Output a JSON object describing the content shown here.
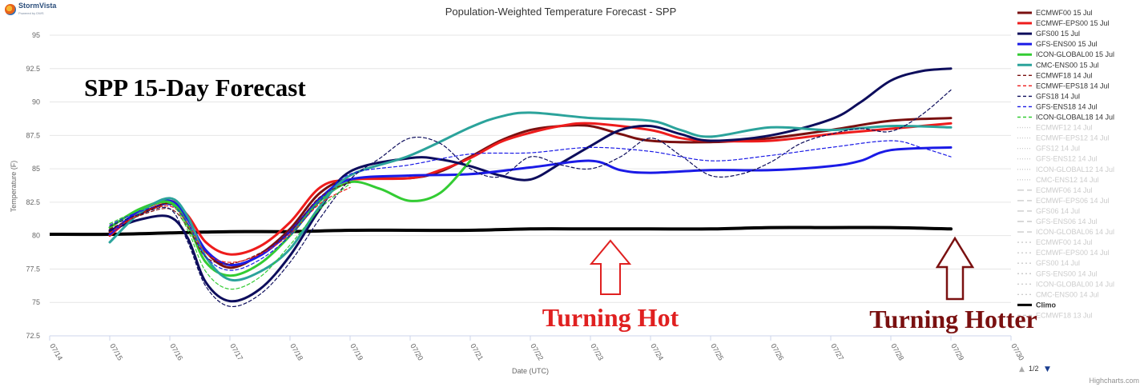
{
  "branding": {
    "logo_text": "StormVista",
    "logo_sub": "Powered by DWS",
    "credits": "Highcharts.com"
  },
  "legend_paging": {
    "up_icon": "▲",
    "text": "1/2",
    "down_icon": "▼"
  },
  "overlays": {
    "big_title": "SPP 15-Day Forecast",
    "hot_label": "Turning Hot",
    "hotter_label": "Turning Hotter",
    "hot_color": "#e02020",
    "hotter_color": "#7a1010"
  },
  "chart_data": {
    "type": "line",
    "title": "Population-Weighted Temperature Forecast - SPP",
    "xlabel": "Date (UTC)",
    "ylabel": "Temperature (F)",
    "x_ticks": [
      "07/14",
      "07/15",
      "07/16",
      "07/17",
      "07/18",
      "07/19",
      "07/20",
      "07/21",
      "07/22",
      "07/23",
      "07/24",
      "07/25",
      "07/26",
      "07/27",
      "07/28",
      "07/29",
      "07/30"
    ],
    "xlim": [
      0,
      16
    ],
    "ylim": [
      72.5,
      95
    ],
    "y_ticks": [
      72.5,
      75,
      77.5,
      80,
      82.5,
      85,
      87.5,
      90,
      92.5,
      95
    ],
    "legend_position": "right",
    "series": [
      {
        "name": "ECMWF00 15 Jul",
        "color": "#7a1010",
        "dash": "solid",
        "width": 3,
        "points": [
          [
            1,
            80.3
          ],
          [
            1.5,
            81.6
          ],
          [
            2,
            82.4
          ],
          [
            2.3,
            81.2
          ],
          [
            2.6,
            78.8
          ],
          [
            3,
            77.6
          ],
          [
            3.5,
            78.6
          ],
          [
            4,
            80.5
          ],
          [
            4.5,
            83.2
          ],
          [
            5,
            84.2
          ],
          [
            6,
            84.3
          ],
          [
            6.5,
            84.8
          ],
          [
            7,
            85.9
          ],
          [
            7.5,
            87.1
          ],
          [
            8,
            87.9
          ],
          [
            8.5,
            88.2
          ],
          [
            9,
            88.2
          ],
          [
            9.5,
            87.6
          ],
          [
            10,
            87.1
          ],
          [
            11,
            87.0
          ],
          [
            12,
            87.3
          ],
          [
            13,
            87.9
          ],
          [
            14,
            88.6
          ],
          [
            15,
            88.8
          ]
        ]
      },
      {
        "name": "ECMWF-EPS00 15 Jul",
        "color": "#ee1c1c",
        "dash": "solid",
        "width": 3,
        "points": [
          [
            1,
            80.0
          ],
          [
            1.5,
            81.8
          ],
          [
            2,
            82.6
          ],
          [
            2.3,
            81.5
          ],
          [
            2.6,
            79.5
          ],
          [
            3,
            78.6
          ],
          [
            3.5,
            79.2
          ],
          [
            4,
            81.0
          ],
          [
            4.5,
            83.6
          ],
          [
            5,
            84.2
          ],
          [
            6,
            84.3
          ],
          [
            6.5,
            84.9
          ],
          [
            7,
            85.8
          ],
          [
            7.5,
            87.0
          ],
          [
            8,
            87.7
          ],
          [
            8.5,
            88.2
          ],
          [
            9,
            88.4
          ],
          [
            10,
            87.9
          ],
          [
            10.5,
            87.3
          ],
          [
            11,
            87.1
          ],
          [
            12,
            87.1
          ],
          [
            13,
            87.6
          ],
          [
            14,
            88.0
          ],
          [
            15,
            88.4
          ]
        ]
      },
      {
        "name": "GFS00 15 Jul",
        "color": "#0d0d5c",
        "dash": "solid",
        "width": 3,
        "points": [
          [
            1,
            80.4
          ],
          [
            1.5,
            81.2
          ],
          [
            2,
            81.4
          ],
          [
            2.3,
            79.8
          ],
          [
            2.6,
            76.5
          ],
          [
            3,
            75.1
          ],
          [
            3.5,
            76.0
          ],
          [
            4,
            78.5
          ],
          [
            4.5,
            82.0
          ],
          [
            5,
            84.8
          ],
          [
            6,
            85.8
          ],
          [
            6.5,
            85.7
          ],
          [
            7,
            85.2
          ],
          [
            7.5,
            84.5
          ],
          [
            8,
            84.2
          ],
          [
            8.5,
            85.4
          ],
          [
            9,
            86.7
          ],
          [
            9.5,
            87.9
          ],
          [
            10,
            88.2
          ],
          [
            10.5,
            87.6
          ],
          [
            11,
            87.1
          ],
          [
            12,
            87.5
          ],
          [
            13,
            88.7
          ],
          [
            13.5,
            90.0
          ],
          [
            14,
            91.6
          ],
          [
            14.5,
            92.3
          ],
          [
            15,
            92.5
          ]
        ]
      },
      {
        "name": "GFS-ENS00 15 Jul",
        "color": "#1a1ae6",
        "dash": "solid",
        "width": 3,
        "points": [
          [
            1,
            80.1
          ],
          [
            1.5,
            81.9
          ],
          [
            2,
            82.6
          ],
          [
            2.3,
            81.2
          ],
          [
            2.6,
            78.9
          ],
          [
            3,
            77.8
          ],
          [
            3.5,
            78.5
          ],
          [
            4,
            80.3
          ],
          [
            4.5,
            82.8
          ],
          [
            5,
            84.2
          ],
          [
            6,
            84.5
          ],
          [
            7,
            84.6
          ],
          [
            8,
            85.1
          ],
          [
            9,
            85.6
          ],
          [
            9.5,
            84.9
          ],
          [
            10,
            84.7
          ],
          [
            11,
            84.9
          ],
          [
            12,
            84.9
          ],
          [
            13,
            85.2
          ],
          [
            13.5,
            85.6
          ],
          [
            14,
            86.4
          ],
          [
            15,
            86.6
          ]
        ]
      },
      {
        "name": "ICON-GLOBAL00 15 Jul",
        "color": "#33cc33",
        "dash": "solid",
        "width": 3,
        "points": [
          [
            1,
            80.6
          ],
          [
            1.5,
            82.0
          ],
          [
            2,
            82.5
          ],
          [
            2.3,
            80.8
          ],
          [
            2.6,
            78.0
          ],
          [
            3,
            77.0
          ],
          [
            3.5,
            77.9
          ],
          [
            4,
            80.0
          ],
          [
            4.5,
            82.6
          ],
          [
            5,
            84.0
          ],
          [
            5.5,
            83.5
          ],
          [
            6,
            82.6
          ],
          [
            6.5,
            83.2
          ],
          [
            7,
            85.6
          ]
        ]
      },
      {
        "name": "CMC-ENS00 15 Jul",
        "color": "#2ba39b",
        "dash": "solid",
        "width": 3,
        "points": [
          [
            1,
            79.5
          ],
          [
            1.5,
            81.7
          ],
          [
            2,
            82.8
          ],
          [
            2.3,
            81.4
          ],
          [
            2.6,
            78.4
          ],
          [
            3,
            76.7
          ],
          [
            3.5,
            77.3
          ],
          [
            4,
            79.0
          ],
          [
            4.5,
            82.2
          ],
          [
            5,
            84.5
          ],
          [
            6,
            86.0
          ],
          [
            7,
            88.1
          ],
          [
            7.5,
            88.9
          ],
          [
            8,
            89.2
          ],
          [
            9,
            88.8
          ],
          [
            10,
            88.6
          ],
          [
            10.5,
            87.9
          ],
          [
            11,
            87.4
          ],
          [
            12,
            88.1
          ],
          [
            13,
            87.9
          ],
          [
            14,
            88.2
          ],
          [
            15,
            88.1
          ]
        ]
      },
      {
        "name": "ECMWF18 14 Jul",
        "color": "#7a1010",
        "dash": "4,3",
        "width": 1.2,
        "points": [
          [
            1,
            80.5
          ],
          [
            1.5,
            81.5
          ],
          [
            2,
            82.0
          ],
          [
            2.3,
            80.6
          ],
          [
            2.6,
            78.4
          ],
          [
            3,
            77.9
          ],
          [
            3.5,
            78.7
          ],
          [
            4,
            80.3
          ],
          [
            4.5,
            82.9
          ],
          [
            5,
            84.0
          ]
        ]
      },
      {
        "name": "ECMWF-EPS18 14 Jul",
        "color": "#ee1c1c",
        "dash": "4,3",
        "width": 1.2,
        "points": [
          [
            1,
            80.2
          ],
          [
            1.5,
            81.6
          ],
          [
            2,
            82.2
          ],
          [
            2.3,
            80.9
          ],
          [
            2.6,
            78.7
          ],
          [
            3,
            78.0
          ],
          [
            3.5,
            78.6
          ],
          [
            4,
            80.1
          ],
          [
            4.5,
            82.4
          ],
          [
            5,
            83.6
          ]
        ]
      },
      {
        "name": "GFS18 14 Jul",
        "color": "#0d0d5c",
        "dash": "4,3",
        "width": 1.2,
        "points": [
          [
            1,
            80.7
          ],
          [
            1.5,
            81.6
          ],
          [
            2,
            82.0
          ],
          [
            2.3,
            79.5
          ],
          [
            2.6,
            76.2
          ],
          [
            3,
            74.7
          ],
          [
            3.5,
            75.6
          ],
          [
            4,
            78.0
          ],
          [
            4.5,
            81.3
          ],
          [
            5,
            84.2
          ],
          [
            5.5,
            85.8
          ],
          [
            6,
            87.3
          ],
          [
            6.5,
            86.9
          ],
          [
            7,
            85.0
          ],
          [
            7.5,
            84.4
          ],
          [
            8,
            85.9
          ],
          [
            8.5,
            85.3
          ],
          [
            9,
            85.0
          ],
          [
            9.5,
            85.9
          ],
          [
            10,
            87.3
          ],
          [
            10.5,
            86.0
          ],
          [
            11,
            84.5
          ],
          [
            11.5,
            84.6
          ],
          [
            12,
            85.5
          ],
          [
            12.5,
            86.9
          ],
          [
            13,
            87.6
          ],
          [
            13.5,
            88.0
          ],
          [
            14,
            87.8
          ],
          [
            14.5,
            89.0
          ],
          [
            15,
            90.9
          ]
        ]
      },
      {
        "name": "GFS-ENS18 14 Jul",
        "color": "#1a1ae6",
        "dash": "4,3",
        "width": 1.2,
        "points": [
          [
            1,
            80.8
          ],
          [
            1.5,
            81.8
          ],
          [
            2,
            82.3
          ],
          [
            2.3,
            80.9
          ],
          [
            2.6,
            78.4
          ],
          [
            3,
            77.4
          ],
          [
            3.5,
            78.2
          ],
          [
            4,
            80.0
          ],
          [
            4.5,
            82.6
          ],
          [
            5,
            84.6
          ],
          [
            6,
            85.3
          ],
          [
            7,
            86.1
          ],
          [
            8,
            86.2
          ],
          [
            9,
            86.6
          ],
          [
            10,
            86.3
          ],
          [
            11,
            85.6
          ],
          [
            12,
            86.0
          ],
          [
            13,
            86.6
          ],
          [
            14,
            87.1
          ],
          [
            14.5,
            86.6
          ],
          [
            15,
            85.9
          ]
        ]
      },
      {
        "name": "ICON-GLOBAL18 14 Jul",
        "color": "#33cc33",
        "dash": "4,3",
        "width": 1.2,
        "points": [
          [
            1,
            80.9
          ],
          [
            1.5,
            81.9
          ],
          [
            2,
            82.4
          ],
          [
            2.3,
            80.4
          ],
          [
            2.6,
            77.3
          ],
          [
            3,
            76.0
          ],
          [
            3.5,
            76.9
          ],
          [
            4,
            79.3
          ],
          [
            4.5,
            82.0
          ],
          [
            5,
            83.9
          ]
        ]
      },
      {
        "name": "ECMWF12 14 Jul",
        "color": "#cccccc",
        "dash": "1,2",
        "width": 1,
        "points": []
      },
      {
        "name": "ECMWF-EPS12 14 Jul",
        "color": "#cccccc",
        "dash": "1,2",
        "width": 1,
        "points": []
      },
      {
        "name": "GFS12 14 Jul",
        "color": "#cccccc",
        "dash": "1,2",
        "width": 1,
        "points": []
      },
      {
        "name": "GFS-ENS12 14 Jul",
        "color": "#cccccc",
        "dash": "1,2",
        "width": 1,
        "points": []
      },
      {
        "name": "ICON-GLOBAL12 14 Jul",
        "color": "#cccccc",
        "dash": "1,2",
        "width": 1,
        "points": []
      },
      {
        "name": "CMC-ENS12 14 Jul",
        "color": "#cccccc",
        "dash": "1,2",
        "width": 1,
        "points": []
      },
      {
        "name": "ECMWF06 14 Jul",
        "color": "#cccccc",
        "dash": "8,4",
        "width": 1,
        "points": []
      },
      {
        "name": "ECMWF-EPS06 14 Jul",
        "color": "#cccccc",
        "dash": "8,4",
        "width": 1,
        "points": []
      },
      {
        "name": "GFS06 14 Jul",
        "color": "#cccccc",
        "dash": "8,4",
        "width": 1,
        "points": []
      },
      {
        "name": "GFS-ENS06 14 Jul",
        "color": "#cccccc",
        "dash": "8,4",
        "width": 1,
        "points": []
      },
      {
        "name": "ICON-GLOBAL06 14 Jul",
        "color": "#cccccc",
        "dash": "8,4",
        "width": 1,
        "points": []
      },
      {
        "name": "ECMWF00 14 Jul",
        "color": "#cccccc",
        "dash": "2,3",
        "width": 1,
        "points": []
      },
      {
        "name": "ECMWF-EPS00 14 Jul",
        "color": "#cccccc",
        "dash": "2,3",
        "width": 1,
        "points": []
      },
      {
        "name": "GFS00 14 Jul",
        "color": "#cccccc",
        "dash": "2,3",
        "width": 1,
        "points": []
      },
      {
        "name": "GFS-ENS00 14 Jul",
        "color": "#cccccc",
        "dash": "2,3",
        "width": 1,
        "points": []
      },
      {
        "name": "ICON-GLOBAL00 14 Jul",
        "color": "#cccccc",
        "dash": "2,3",
        "width": 1,
        "points": []
      },
      {
        "name": "CMC-ENS00 14 Jul",
        "color": "#cccccc",
        "dash": "2,3",
        "width": 1,
        "points": []
      },
      {
        "name": "Climo",
        "color": "#000000",
        "dash": "solid",
        "width": 4,
        "points": [
          [
            0,
            80.1
          ],
          [
            1,
            80.1
          ],
          [
            2,
            80.2
          ],
          [
            3,
            80.3
          ],
          [
            4,
            80.3
          ],
          [
            5,
            80.4
          ],
          [
            6,
            80.4
          ],
          [
            7,
            80.4
          ],
          [
            8,
            80.5
          ],
          [
            9,
            80.5
          ],
          [
            10,
            80.5
          ],
          [
            11,
            80.5
          ],
          [
            12,
            80.6
          ],
          [
            13,
            80.6
          ],
          [
            14,
            80.6
          ],
          [
            15,
            80.5
          ]
        ]
      },
      {
        "name": "ECMWF18 13 Jul",
        "color": "#cccccc",
        "dash": "4,3",
        "width": 1,
        "points": []
      }
    ]
  }
}
